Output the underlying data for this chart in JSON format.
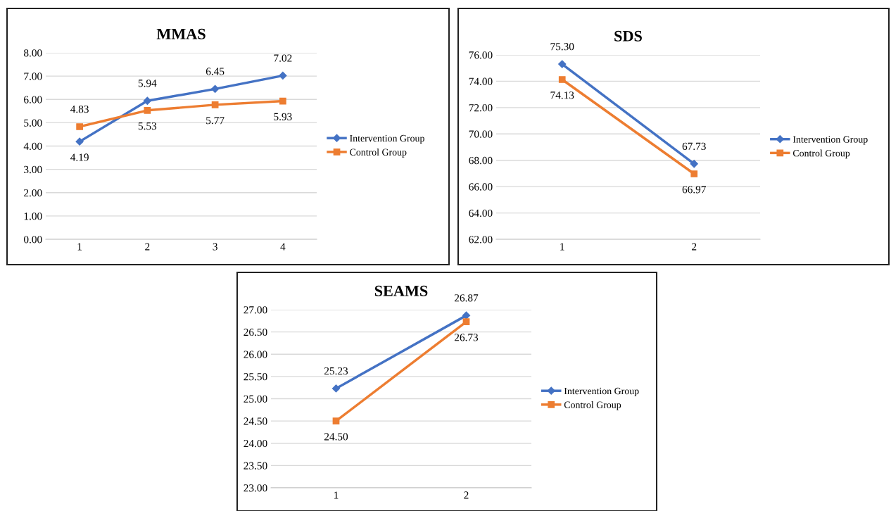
{
  "chart_data": [
    {
      "type": "line",
      "title": "MMAS",
      "categories": [
        "1",
        "2",
        "3",
        "4"
      ],
      "ylim": [
        0,
        8
      ],
      "yticks": [
        {
          "value": 0,
          "label": "0.00"
        },
        {
          "value": 1,
          "label": "1.00"
        },
        {
          "value": 2,
          "label": "2.00"
        },
        {
          "value": 3,
          "label": "3.00"
        },
        {
          "value": 4,
          "label": "4.00"
        },
        {
          "value": 5,
          "label": "5.00"
        },
        {
          "value": 6,
          "label": "6.00"
        },
        {
          "value": 7,
          "label": "7.00"
        },
        {
          "value": 8,
          "label": "8.00"
        }
      ],
      "grid": "y",
      "legend": "right",
      "series": [
        {
          "name": "Intervention Group",
          "color": "#4472c4",
          "marker": "diamond",
          "values": [
            4.19,
            5.94,
            6.45,
            7.02
          ],
          "value_labels": [
            "4.19",
            "5.94",
            "6.45",
            "7.02"
          ]
        },
        {
          "name": "Control Group",
          "color": "#ed7d31",
          "marker": "square",
          "values": [
            4.83,
            5.53,
            5.77,
            5.93
          ],
          "value_labels": [
            "4.83",
            "5.53",
            "5.77",
            "5.93"
          ]
        }
      ]
    },
    {
      "type": "line",
      "title": "SDS",
      "categories": [
        "1",
        "2"
      ],
      "ylim": [
        62,
        76
      ],
      "yticks": [
        {
          "value": 62,
          "label": "62.00"
        },
        {
          "value": 64,
          "label": "64.00"
        },
        {
          "value": 66,
          "label": "66.00"
        },
        {
          "value": 68,
          "label": "68.00"
        },
        {
          "value": 70,
          "label": "70.00"
        },
        {
          "value": 72,
          "label": "72.00"
        },
        {
          "value": 74,
          "label": "74.00"
        },
        {
          "value": 76,
          "label": "76.00"
        }
      ],
      "grid": "y",
      "legend": "right",
      "series": [
        {
          "name": "Intervention Group",
          "color": "#4472c4",
          "marker": "diamond",
          "values": [
            75.3,
            67.73
          ],
          "value_labels": [
            "75.30",
            "67.73"
          ]
        },
        {
          "name": "Control Group",
          "color": "#ed7d31",
          "marker": "square",
          "values": [
            74.13,
            66.97
          ],
          "value_labels": [
            "74.13",
            "66.97"
          ]
        }
      ]
    },
    {
      "type": "line",
      "title": "SEAMS",
      "categories": [
        "1",
        "2"
      ],
      "ylim": [
        23,
        27
      ],
      "yticks": [
        {
          "value": 23,
          "label": "23.00"
        },
        {
          "value": 23.5,
          "label": "23.50"
        },
        {
          "value": 24,
          "label": "24.00"
        },
        {
          "value": 24.5,
          "label": "24.50"
        },
        {
          "value": 25,
          "label": "25.00"
        },
        {
          "value": 25.5,
          "label": "25.50"
        },
        {
          "value": 26,
          "label": "26.00"
        },
        {
          "value": 26.5,
          "label": "26.50"
        },
        {
          "value": 27,
          "label": "27.00"
        }
      ],
      "grid": "y",
      "legend": "right",
      "series": [
        {
          "name": "Intervention Group",
          "color": "#4472c4",
          "marker": "diamond",
          "values": [
            25.23,
            26.87
          ],
          "value_labels": [
            "25.23",
            "26.87"
          ]
        },
        {
          "name": "Control Group",
          "color": "#ed7d31",
          "marker": "square",
          "values": [
            24.5,
            26.73
          ],
          "value_labels": [
            "24.50",
            "26.73"
          ]
        }
      ]
    }
  ]
}
